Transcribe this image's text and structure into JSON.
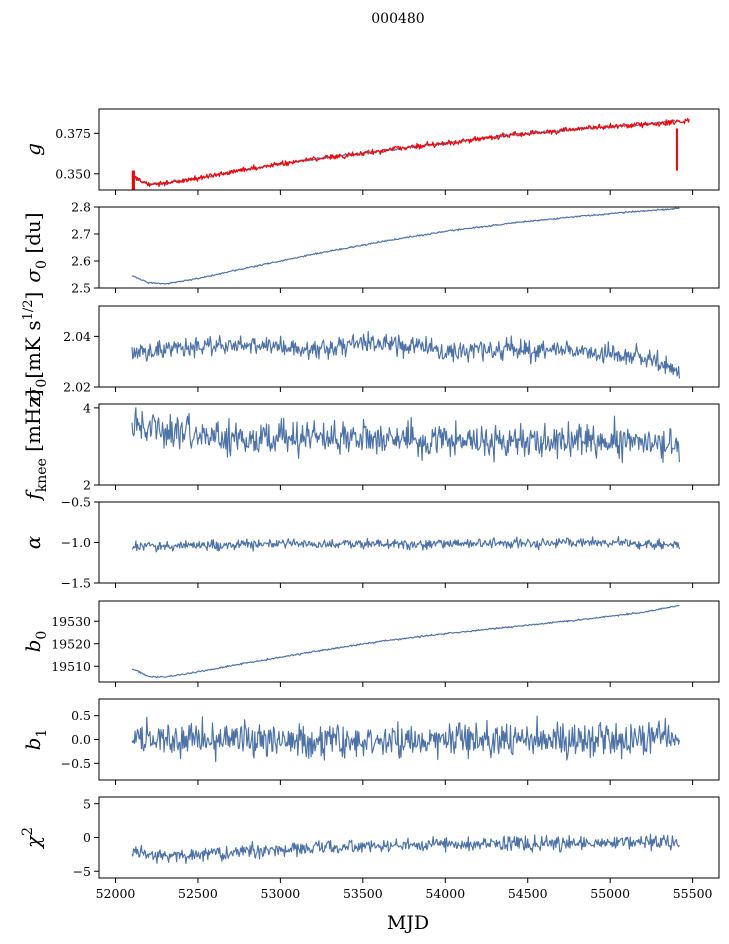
{
  "chart_data": {
    "title": "000480",
    "xlabel": "MJD",
    "type": "line",
    "x_range": [
      52100,
      55420
    ],
    "xlim": [
      51900,
      55660
    ],
    "xticks": [
      52000,
      52500,
      53000,
      53500,
      54000,
      54500,
      55000,
      55500
    ],
    "xtick_labels": [
      "52000",
      "52500",
      "53000",
      "53500",
      "54000",
      "54500",
      "55000",
      "55500"
    ],
    "colors": {
      "series": "#4c72a8",
      "fit": "#ff0000"
    },
    "panels": [
      {
        "key": "g",
        "ylabel": "g",
        "ylim": [
          0.34,
          0.39
        ],
        "yticks": [
          0.35,
          0.375
        ],
        "ytick_labels": [
          "0.350",
          "0.375"
        ],
        "series": [
          {
            "color": "#4c72a8",
            "width": 1.1,
            "noise": 0.0006,
            "x": [
              52100,
              52150,
              52200,
              52300,
              52500,
              52800,
              53200,
              53600,
              54000,
              54400,
              54800,
              55200,
              55420
            ],
            "y": [
              0.349,
              0.345,
              0.3435,
              0.344,
              0.3475,
              0.353,
              0.359,
              0.364,
              0.369,
              0.374,
              0.3775,
              0.3805,
              0.383
            ]
          },
          {
            "color": "#ff0000",
            "width": 2.6,
            "noise": 0.0012,
            "x": [
              52100,
              52150,
              52200,
              52300,
              52500,
              52800,
              53200,
              53600,
              54000,
              54400,
              54800,
              55200,
              55480
            ],
            "y": [
              0.349,
              0.345,
              0.3435,
              0.344,
              0.3475,
              0.353,
              0.359,
              0.364,
              0.369,
              0.374,
              0.3775,
              0.3805,
              0.383
            ]
          }
        ]
      },
      {
        "key": "sigma0_du",
        "ylabel": "σ0 [du]",
        "ylim": [
          2.5,
          2.8
        ],
        "yticks": [
          2.5,
          2.6,
          2.7,
          2.8
        ],
        "ytick_labels": [
          "2.5",
          "2.6",
          "2.7",
          "2.8"
        ],
        "series": [
          {
            "color": "#4c72a8",
            "width": 1.1,
            "noise": 0.002,
            "x": [
              52100,
              52200,
              52300,
              52500,
              52800,
              53200,
              53600,
              54000,
              54400,
              54800,
              55200,
              55420
            ],
            "y": [
              2.545,
              2.52,
              2.515,
              2.535,
              2.575,
              2.625,
              2.67,
              2.71,
              2.74,
              2.765,
              2.785,
              2.795
            ]
          }
        ]
      },
      {
        "key": "sigma0_mK",
        "ylabel": "σ0 [mK s^1/2]",
        "ylim": [
          2.02,
          2.052
        ],
        "yticks": [
          2.02,
          2.04
        ],
        "ytick_labels": [
          "2.02",
          "2.04"
        ],
        "series": [
          {
            "color": "#4c72a8",
            "width": 1.1,
            "noise": 0.0028,
            "x": [
              52100,
              52500,
              52800,
              53200,
              53600,
              54000,
              54400,
              54800,
              55200,
              55420
            ],
            "y": [
              2.033,
              2.036,
              2.037,
              2.035,
              2.038,
              2.034,
              2.035,
              2.034,
              2.032,
              2.026
            ]
          }
        ]
      },
      {
        "key": "fknee",
        "ylabel": "fknee [mHz]",
        "ylim": [
          2.0,
          4.1
        ],
        "yticks": [
          2,
          4
        ],
        "ytick_labels": [
          "2",
          "4"
        ],
        "series": [
          {
            "color": "#4c72a8",
            "width": 1.1,
            "noise": 0.32,
            "x": [
              52100,
              52400,
              52800,
              53200,
              53600,
              54000,
              54400,
              54800,
              55200,
              55420
            ],
            "y": [
              3.5,
              3.4,
              3.2,
              3.25,
              3.2,
              3.15,
              3.1,
              3.1,
              3.15,
              3.0
            ]
          }
        ]
      },
      {
        "key": "alpha",
        "ylabel": "α",
        "ylim": [
          -1.5,
          -0.5
        ],
        "yticks": [
          -1.5,
          -1.0,
          -0.5
        ],
        "ytick_labels": [
          "−1.5",
          "−1.0",
          "−0.5"
        ],
        "series": [
          {
            "color": "#4c72a8",
            "width": 1.1,
            "noise": 0.045,
            "x": [
              52100,
              52600,
              53200,
              53800,
              54400,
              55000,
              55420
            ],
            "y": [
              -1.05,
              -1.03,
              -1.02,
              -1.02,
              -1.01,
              -1.01,
              -1.03
            ]
          }
        ]
      },
      {
        "key": "b0",
        "ylabel": "b0",
        "ylim": [
          19503,
          19539
        ],
        "yticks": [
          19510,
          19520,
          19530
        ],
        "ytick_labels": [
          "19510",
          "19520",
          "19530"
        ],
        "series": [
          {
            "color": "#4c72a8",
            "width": 1.1,
            "noise": 0.25,
            "x": [
              52100,
              52200,
              52300,
              52500,
              52800,
              53200,
              53600,
              54000,
              54400,
              54800,
              55200,
              55420
            ],
            "y": [
              19509,
              19505.5,
              19505.2,
              19507.5,
              19511.5,
              19516.5,
              19521,
              19524.5,
              19527.5,
              19530.5,
              19534,
              19537
            ]
          }
        ]
      },
      {
        "key": "b1",
        "ylabel": "b1",
        "ylim": [
          -0.85,
          0.85
        ],
        "yticks": [
          -0.5,
          0.0,
          0.5
        ],
        "ytick_labels": [
          "−0.5",
          "0.0",
          "0.5"
        ],
        "series": [
          {
            "color": "#4c72a8",
            "width": 1.1,
            "noise": 0.26,
            "x": [
              52100,
              55420
            ],
            "y": [
              0.0,
              0.0
            ]
          }
        ]
      },
      {
        "key": "chi2",
        "ylabel": "χ2",
        "ylim": [
          -6,
          6
        ],
        "yticks": [
          -5,
          0,
          5
        ],
        "ytick_labels": [
          "−5",
          "0",
          "5"
        ],
        "series": [
          {
            "color": "#4c72a8",
            "width": 1.1,
            "noise": 0.75,
            "x": [
              52100,
              52500,
              53000,
              53500,
              54000,
              54500,
              55000,
              55420
            ],
            "y": [
              -2.6,
              -2.6,
              -1.7,
              -1.3,
              -1.0,
              -0.9,
              -0.8,
              -0.7
            ]
          }
        ]
      }
    ]
  }
}
